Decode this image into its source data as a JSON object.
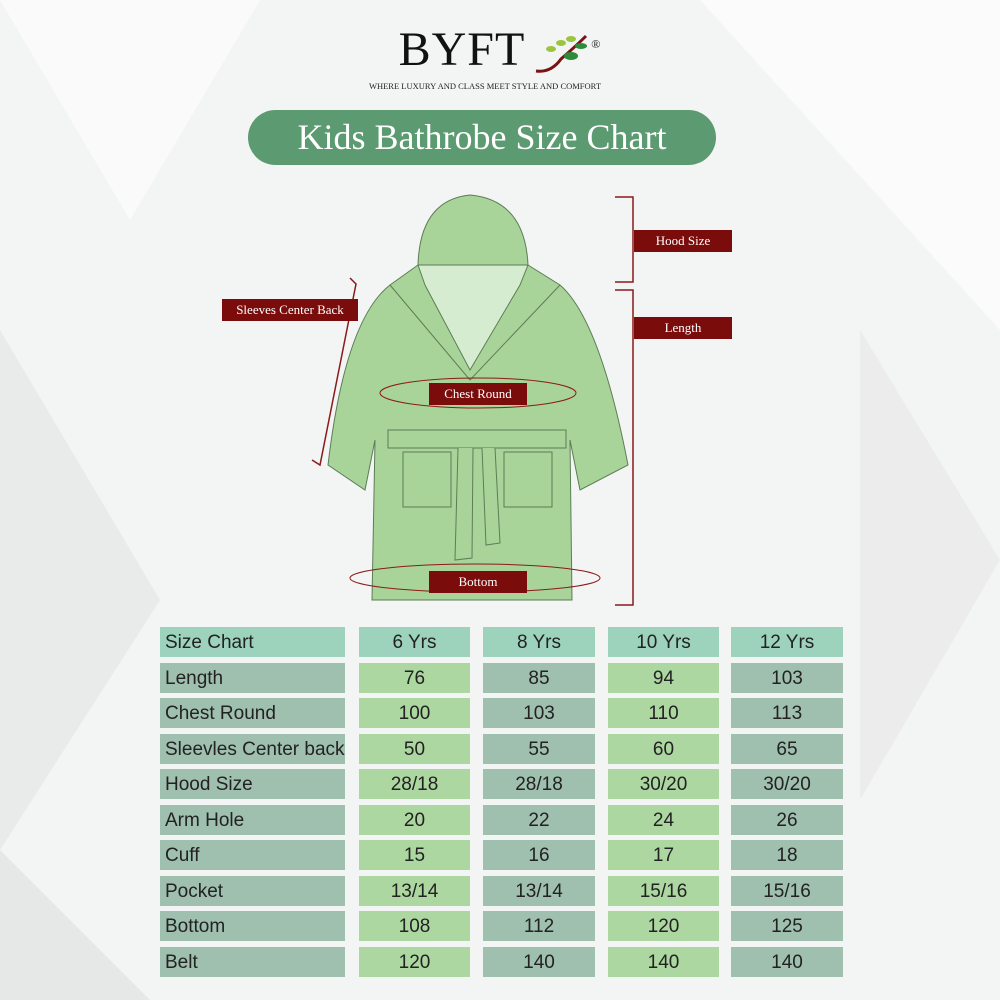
{
  "brand": {
    "name": "BYFT",
    "registered": "®",
    "tagline": "WHERE LUXURY AND CLASS MEET STYLE AND COMFORT"
  },
  "title": "Kids Bathrobe Size Chart",
  "diagram_labels": {
    "hood": "Hood Size",
    "length": "Length",
    "sleeves": "Sleeves Center Back",
    "chest": "Chest Round",
    "bottom": "Bottom"
  },
  "colors": {
    "title_bg": "#5c9a71",
    "label_bg": "#7a0c0c",
    "robe": "#a8d49a",
    "header_cell": "#9dd3bd",
    "gray_cell": "#9fbfaf",
    "green_cell": "#acd7a0"
  },
  "table": {
    "headers": [
      "Size Chart",
      "6 Yrs",
      "8 Yrs",
      "10 Yrs",
      "12 Yrs"
    ],
    "rows": [
      [
        "Length",
        "76",
        "85",
        "94",
        "103"
      ],
      [
        "Chest Round",
        "100",
        "103",
        "110",
        "113"
      ],
      [
        "Sleevles Center back",
        "50",
        "55",
        "60",
        "65"
      ],
      [
        "Hood Size",
        "28/18",
        "28/18",
        "30/20",
        "30/20"
      ],
      [
        "Arm Hole",
        "20",
        "22",
        "24",
        "26"
      ],
      [
        "Cuff",
        "15",
        "16",
        "17",
        "18"
      ],
      [
        "Pocket",
        "13/14",
        "13/14",
        "15/16",
        "15/16"
      ],
      [
        "Bottom",
        "108",
        "112",
        "120",
        "125"
      ],
      [
        "Belt",
        "120",
        "140",
        "140",
        "140"
      ]
    ]
  }
}
